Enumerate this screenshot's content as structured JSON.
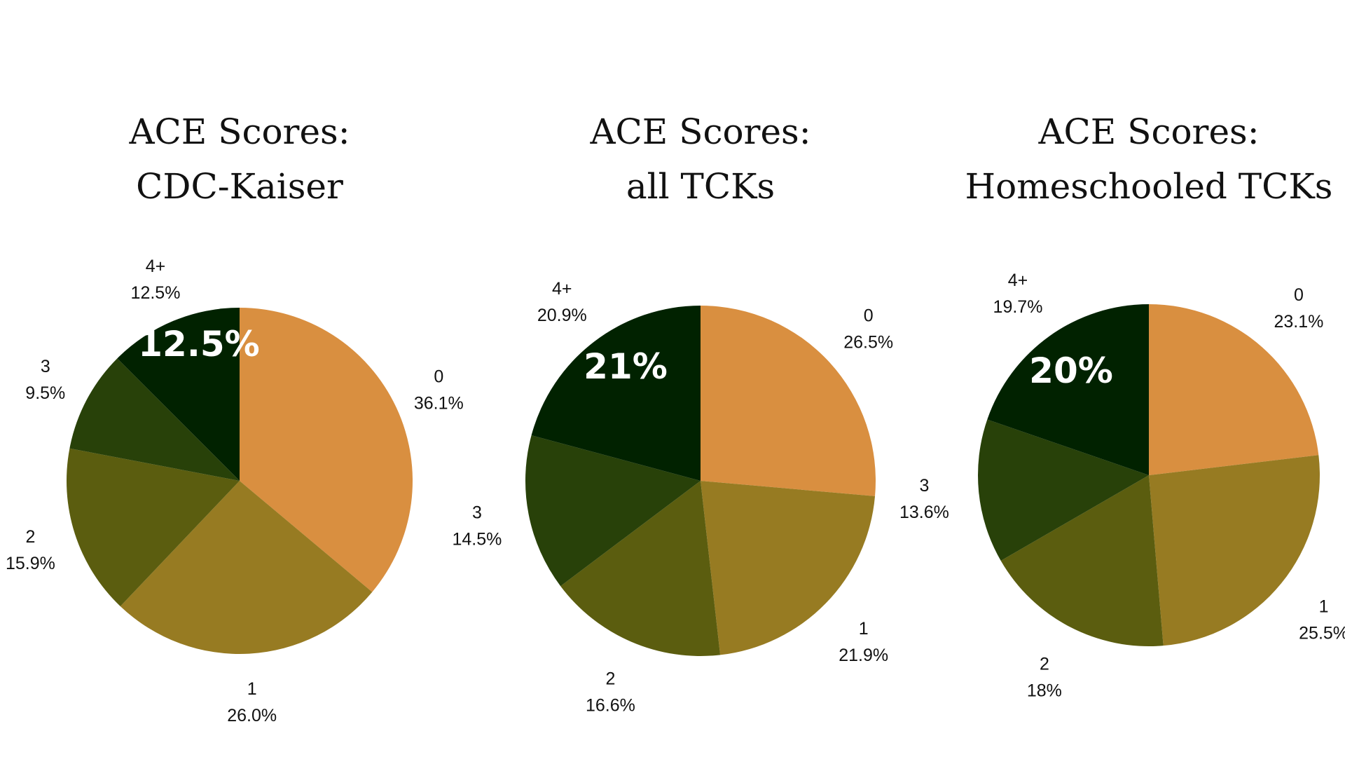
{
  "chart_data": [
    {
      "type": "pie",
      "title": [
        "ACE Scores:",
        "CDC-Kaiser"
      ],
      "highlight_label": "12.5%",
      "slices": [
        {
          "name": "0",
          "label": "36.1%",
          "value": 36.1,
          "color": "#d98f40"
        },
        {
          "name": "1",
          "label": "26.0%",
          "value": 26.0,
          "color": "#977b22"
        },
        {
          "name": "2",
          "label": "15.9%",
          "value": 15.9,
          "color": "#5b5d0f"
        },
        {
          "name": "3",
          "label": "9.5%",
          "value": 9.5,
          "color": "#284109"
        },
        {
          "name": "4+",
          "label": "12.5%",
          "value": 12.5,
          "color": "#012200"
        }
      ]
    },
    {
      "type": "pie",
      "title": [
        "ACE Scores:",
        "all TCKs"
      ],
      "highlight_label": "21%",
      "slices": [
        {
          "name": "0",
          "label": "26.5%",
          "value": 26.5,
          "color": "#d98f40"
        },
        {
          "name": "1",
          "label": "21.9%",
          "value": 21.9,
          "color": "#977b22"
        },
        {
          "name": "2",
          "label": "16.6%",
          "value": 16.6,
          "color": "#5b5d0f"
        },
        {
          "name": "3",
          "label": "14.5%",
          "value": 14.5,
          "color": "#284109"
        },
        {
          "name": "4+",
          "label": "20.9%",
          "value": 20.9,
          "color": "#012200"
        }
      ]
    },
    {
      "type": "pie",
      "title": [
        "ACE Scores:",
        "Homeschooled TCKs"
      ],
      "highlight_label": "20%",
      "slices": [
        {
          "name": "0",
          "label": "23.1%",
          "value": 23.1,
          "color": "#d98f40"
        },
        {
          "name": "1",
          "label": "25.5%",
          "value": 25.5,
          "color": "#977b22"
        },
        {
          "name": "2",
          "label": "18%",
          "value": 18,
          "color": "#5b5d0f"
        },
        {
          "name": "3",
          "label": "13.6%",
          "value": 13.6,
          "color": "#284109"
        },
        {
          "name": "4+",
          "label": "19.7%",
          "value": 19.7,
          "color": "#012200"
        }
      ]
    }
  ]
}
